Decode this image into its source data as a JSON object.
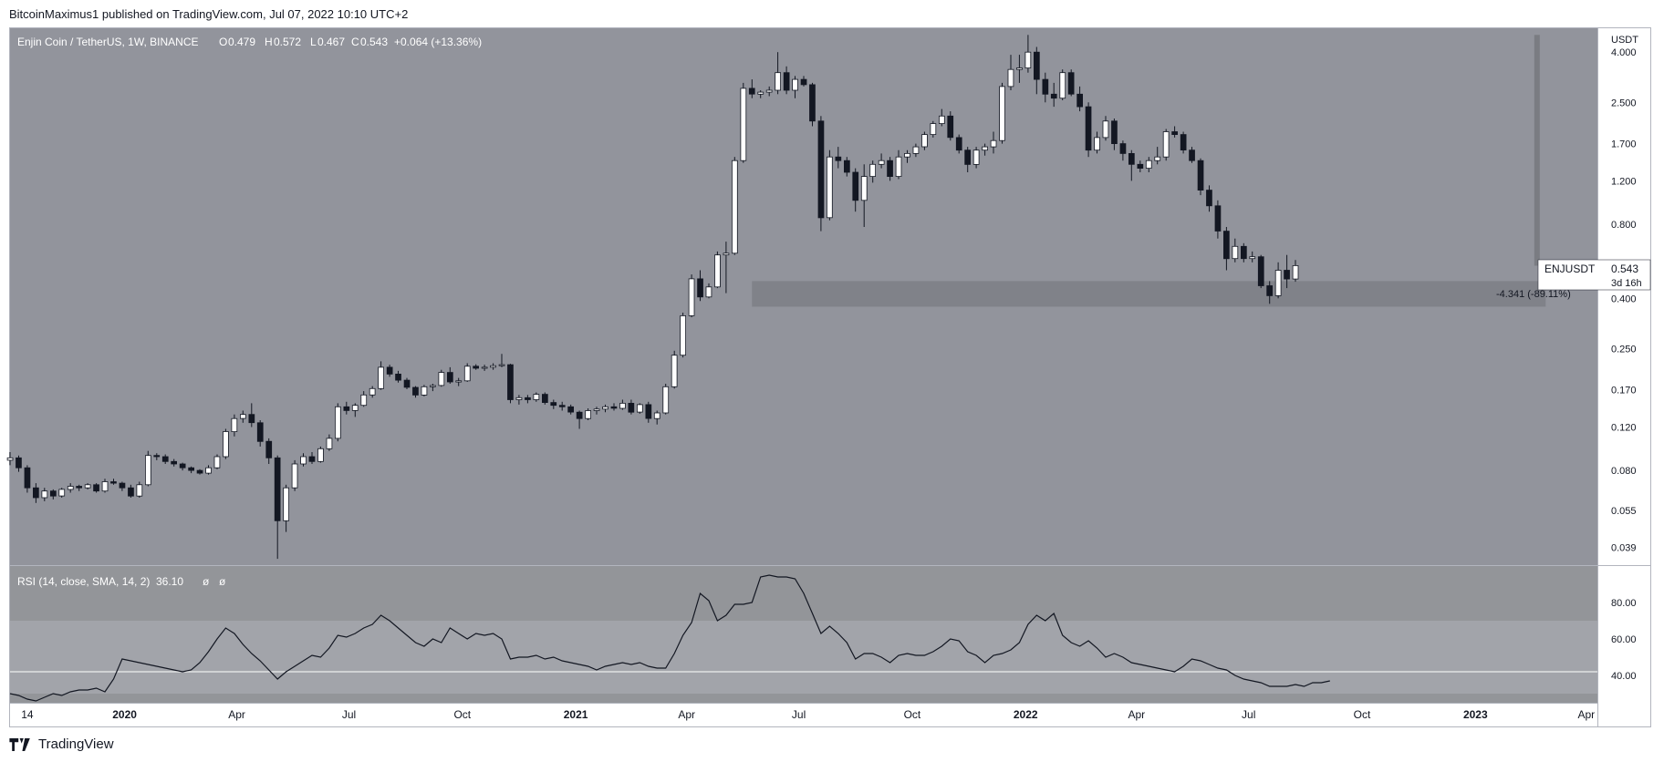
{
  "header": {
    "publish_line": "BitcoinMaximus1 published on TradingView.com, Jul 07, 2022 10:10 UTC+2"
  },
  "footer": {
    "brand": "TradingView"
  },
  "chart_data": [
    {
      "type": "candlestick",
      "title": "Enjin Coin / TetherUS, 1W, BINANCE",
      "ohlc_label": {
        "O": "0.479",
        "H": "0.572",
        "L": "0.467",
        "C": "0.543",
        "change": "+0.064 (+13.36%)"
      },
      "currency": "USDT",
      "scale": "log",
      "ylim": [
        0.033,
        5.0
      ],
      "y_ticks": [
        "4.000",
        "2.500",
        "1.700",
        "1.200",
        "0.800",
        "0.400",
        "0.250",
        "0.170",
        "0.120",
        "0.080",
        "0.055",
        "0.039"
      ],
      "x_ticks": [
        "14",
        "2020",
        "Apr",
        "Jul",
        "Oct",
        "2021",
        "Apr",
        "Jul",
        "Oct",
        "2022",
        "Apr",
        "Jul",
        "Oct",
        "2023",
        "Apr"
      ],
      "x_tick_dates": [
        "2019-10-14",
        "2020-01-01",
        "2020-04-01",
        "2020-07-01",
        "2020-10-01",
        "2021-01-01",
        "2021-04-01",
        "2021-07-01",
        "2021-10-01",
        "2022-01-01",
        "2022-04-01",
        "2022-07-01",
        "2022-10-01",
        "2023-01-01",
        "2023-04-01"
      ],
      "x_range": [
        "2019-09-30",
        "2023-04-10"
      ],
      "first_candle_date": "2019-09-30",
      "up_color": "#ffffff",
      "down_color": "#131722",
      "support_zone": [
        0.37,
        0.47
      ],
      "measure_label": "-4.341 (-89.11%)",
      "price_label": {
        "symbol": "ENJUSDT",
        "price": "0.543",
        "countdown": "3d 16h"
      },
      "candles": [
        [
          0.088,
          0.095,
          0.084,
          0.09
        ],
        [
          0.09,
          0.092,
          0.079,
          0.082
        ],
        [
          0.082,
          0.084,
          0.065,
          0.068
        ],
        [
          0.068,
          0.071,
          0.059,
          0.062
        ],
        [
          0.062,
          0.068,
          0.06,
          0.066
        ],
        [
          0.066,
          0.067,
          0.061,
          0.063
        ],
        [
          0.063,
          0.068,
          0.062,
          0.067
        ],
        [
          0.067,
          0.071,
          0.065,
          0.069
        ],
        [
          0.069,
          0.07,
          0.066,
          0.068
        ],
        [
          0.068,
          0.071,
          0.067,
          0.07
        ],
        [
          0.07,
          0.071,
          0.065,
          0.066
        ],
        [
          0.066,
          0.074,
          0.065,
          0.072
        ],
        [
          0.072,
          0.074,
          0.07,
          0.071
        ],
        [
          0.071,
          0.072,
          0.066,
          0.068
        ],
        [
          0.068,
          0.07,
          0.062,
          0.063
        ],
        [
          0.063,
          0.072,
          0.062,
          0.07
        ],
        [
          0.07,
          0.096,
          0.069,
          0.092
        ],
        [
          0.092,
          0.094,
          0.088,
          0.091
        ],
        [
          0.091,
          0.093,
          0.085,
          0.087
        ],
        [
          0.087,
          0.089,
          0.083,
          0.085
        ],
        [
          0.085,
          0.086,
          0.08,
          0.082
        ],
        [
          0.082,
          0.083,
          0.078,
          0.08
        ],
        [
          0.08,
          0.081,
          0.077,
          0.078
        ],
        [
          0.078,
          0.084,
          0.077,
          0.082
        ],
        [
          0.082,
          0.093,
          0.081,
          0.091
        ],
        [
          0.091,
          0.118,
          0.089,
          0.115
        ],
        [
          0.115,
          0.135,
          0.11,
          0.13
        ],
        [
          0.13,
          0.14,
          0.125,
          0.135
        ],
        [
          0.135,
          0.15,
          0.12,
          0.125
        ],
        [
          0.125,
          0.128,
          0.1,
          0.105
        ],
        [
          0.105,
          0.108,
          0.085,
          0.09
        ],
        [
          0.09,
          0.092,
          0.035,
          0.05
        ],
        [
          0.05,
          0.07,
          0.045,
          0.068
        ],
        [
          0.068,
          0.088,
          0.066,
          0.085
        ],
        [
          0.085,
          0.094,
          0.083,
          0.091
        ],
        [
          0.091,
          0.095,
          0.085,
          0.087
        ],
        [
          0.087,
          0.1,
          0.086,
          0.098
        ],
        [
          0.098,
          0.112,
          0.096,
          0.108
        ],
        [
          0.108,
          0.15,
          0.105,
          0.145
        ],
        [
          0.145,
          0.152,
          0.135,
          0.14
        ],
        [
          0.14,
          0.15,
          0.132,
          0.147
        ],
        [
          0.147,
          0.168,
          0.145,
          0.162
        ],
        [
          0.162,
          0.176,
          0.158,
          0.172
        ],
        [
          0.172,
          0.222,
          0.17,
          0.21
        ],
        [
          0.21,
          0.215,
          0.192,
          0.197
        ],
        [
          0.197,
          0.203,
          0.182,
          0.186
        ],
        [
          0.186,
          0.19,
          0.171,
          0.174
        ],
        [
          0.174,
          0.176,
          0.158,
          0.162
        ],
        [
          0.162,
          0.178,
          0.16,
          0.175
        ],
        [
          0.175,
          0.18,
          0.168,
          0.177
        ],
        [
          0.177,
          0.205,
          0.175,
          0.2
        ],
        [
          0.2,
          0.21,
          0.18,
          0.183
        ],
        [
          0.183,
          0.19,
          0.176,
          0.185
        ],
        [
          0.185,
          0.218,
          0.183,
          0.212
        ],
        [
          0.212,
          0.216,
          0.205,
          0.208
        ],
        [
          0.208,
          0.215,
          0.203,
          0.21
        ],
        [
          0.21,
          0.218,
          0.205,
          0.213
        ],
        [
          0.213,
          0.238,
          0.21,
          0.215
        ],
        [
          0.215,
          0.217,
          0.15,
          0.155
        ],
        [
          0.155,
          0.162,
          0.148,
          0.158
        ],
        [
          0.158,
          0.162,
          0.15,
          0.155
        ],
        [
          0.155,
          0.166,
          0.152,
          0.163
        ],
        [
          0.163,
          0.166,
          0.148,
          0.151
        ],
        [
          0.151,
          0.155,
          0.142,
          0.147
        ],
        [
          0.147,
          0.152,
          0.14,
          0.145
        ],
        [
          0.145,
          0.148,
          0.135,
          0.138
        ],
        [
          0.138,
          0.14,
          0.118,
          0.13
        ],
        [
          0.13,
          0.143,
          0.128,
          0.14
        ],
        [
          0.14,
          0.145,
          0.135,
          0.142
        ],
        [
          0.142,
          0.148,
          0.138,
          0.145
        ],
        [
          0.145,
          0.15,
          0.14,
          0.143
        ],
        [
          0.143,
          0.155,
          0.141,
          0.15
        ],
        [
          0.15,
          0.155,
          0.135,
          0.138
        ],
        [
          0.138,
          0.15,
          0.136,
          0.148
        ],
        [
          0.148,
          0.152,
          0.125,
          0.13
        ],
        [
          0.13,
          0.14,
          0.123,
          0.137
        ],
        [
          0.137,
          0.18,
          0.135,
          0.175
        ],
        [
          0.175,
          0.245,
          0.172,
          0.235
        ],
        [
          0.235,
          0.35,
          0.23,
          0.34
        ],
        [
          0.34,
          0.5,
          0.335,
          0.48
        ],
        [
          0.48,
          0.52,
          0.39,
          0.405
        ],
        [
          0.405,
          0.46,
          0.4,
          0.445
        ],
        [
          0.445,
          0.62,
          0.44,
          0.6
        ],
        [
          0.6,
          0.68,
          0.42,
          0.61
        ],
        [
          0.61,
          1.5,
          0.6,
          1.45
        ],
        [
          1.45,
          3.0,
          1.42,
          2.85
        ],
        [
          2.85,
          3.1,
          2.6,
          2.7
        ],
        [
          2.7,
          2.8,
          2.6,
          2.75
        ],
        [
          2.75,
          2.9,
          2.65,
          2.8
        ],
        [
          2.8,
          4.0,
          2.7,
          3.3
        ],
        [
          3.3,
          3.5,
          2.7,
          2.8
        ],
        [
          2.8,
          3.2,
          2.6,
          3.1
        ],
        [
          3.1,
          3.2,
          2.9,
          2.95
        ],
        [
          2.95,
          3.0,
          2.0,
          2.1
        ],
        [
          2.1,
          2.2,
          0.75,
          0.85
        ],
        [
          0.85,
          1.6,
          0.83,
          1.5
        ],
        [
          1.5,
          1.65,
          1.35,
          1.45
        ],
        [
          1.45,
          1.5,
          1.25,
          1.3
        ],
        [
          1.3,
          1.35,
          0.9,
          1.0
        ],
        [
          1.0,
          1.4,
          0.78,
          1.25
        ],
        [
          1.25,
          1.45,
          1.18,
          1.4
        ],
        [
          1.4,
          1.55,
          1.35,
          1.45
        ],
        [
          1.45,
          1.5,
          1.2,
          1.25
        ],
        [
          1.25,
          1.6,
          1.22,
          1.5
        ],
        [
          1.5,
          1.6,
          1.42,
          1.55
        ],
        [
          1.55,
          1.7,
          1.5,
          1.65
        ],
        [
          1.65,
          1.9,
          1.6,
          1.85
        ],
        [
          1.85,
          2.1,
          1.8,
          2.05
        ],
        [
          2.05,
          2.35,
          2.0,
          2.2
        ],
        [
          2.2,
          2.3,
          1.75,
          1.8
        ],
        [
          1.8,
          1.85,
          1.55,
          1.6
        ],
        [
          1.6,
          1.65,
          1.3,
          1.4
        ],
        [
          1.4,
          1.65,
          1.35,
          1.6
        ],
        [
          1.6,
          1.7,
          1.52,
          1.65
        ],
        [
          1.65,
          1.9,
          1.55,
          1.75
        ],
        [
          1.75,
          3.0,
          1.7,
          2.9
        ],
        [
          2.9,
          3.9,
          2.8,
          3.4
        ],
        [
          3.4,
          3.9,
          3.0,
          3.45
        ],
        [
          3.45,
          4.7,
          3.3,
          4.0
        ],
        [
          4.0,
          4.2,
          2.7,
          3.1
        ],
        [
          3.1,
          3.3,
          2.5,
          2.7
        ],
        [
          2.7,
          3.0,
          2.4,
          2.6
        ],
        [
          2.6,
          3.4,
          2.55,
          3.3
        ],
        [
          3.3,
          3.4,
          2.65,
          2.7
        ],
        [
          2.7,
          2.9,
          2.3,
          2.4
        ],
        [
          2.4,
          2.5,
          1.5,
          1.6
        ],
        [
          1.6,
          1.9,
          1.55,
          1.8
        ],
        [
          1.8,
          2.2,
          1.75,
          2.1
        ],
        [
          2.1,
          2.15,
          1.6,
          1.7
        ],
        [
          1.7,
          1.75,
          1.45,
          1.55
        ],
        [
          1.55,
          1.6,
          1.2,
          1.4
        ],
        [
          1.4,
          1.45,
          1.3,
          1.35
        ],
        [
          1.35,
          1.5,
          1.3,
          1.45
        ],
        [
          1.45,
          1.65,
          1.4,
          1.5
        ],
        [
          1.5,
          1.95,
          1.45,
          1.9
        ],
        [
          1.9,
          2.0,
          1.8,
          1.85
        ],
        [
          1.85,
          1.9,
          1.55,
          1.6
        ],
        [
          1.6,
          1.65,
          1.42,
          1.45
        ],
        [
          1.45,
          1.48,
          1.05,
          1.1
        ],
        [
          1.1,
          1.15,
          0.9,
          0.95
        ],
        [
          0.95,
          1.0,
          0.7,
          0.75
        ],
        [
          0.75,
          0.78,
          0.52,
          0.58
        ],
        [
          0.58,
          0.7,
          0.56,
          0.65
        ],
        [
          0.65,
          0.67,
          0.56,
          0.58
        ],
        [
          0.58,
          0.62,
          0.56,
          0.59
        ],
        [
          0.59,
          0.6,
          0.44,
          0.45
        ],
        [
          0.45,
          0.47,
          0.38,
          0.41
        ],
        [
          0.41,
          0.56,
          0.4,
          0.52
        ],
        [
          0.52,
          0.6,
          0.44,
          0.479
        ],
        [
          0.479,
          0.572,
          0.467,
          0.543
        ]
      ]
    },
    {
      "type": "line",
      "title": "RSI (14, close, SMA, 14, 2)",
      "value_label": "36.10",
      "extra_labels": [
        "ø",
        "ø"
      ],
      "y_ticks": [
        "80.00",
        "60.00",
        "40.00"
      ],
      "ylim": [
        25,
        100
      ],
      "band": [
        30,
        70
      ],
      "level_line": 42,
      "values": [
        30,
        29,
        27,
        26,
        28,
        30,
        29,
        31,
        32,
        32,
        33,
        31,
        38,
        49,
        48,
        47,
        46,
        45,
        44,
        43,
        42,
        43,
        47,
        53,
        60,
        66,
        63,
        57,
        52,
        48,
        43,
        38,
        42,
        45,
        48,
        51,
        50,
        55,
        62,
        61,
        63,
        66,
        68,
        73,
        70,
        66,
        62,
        58,
        56,
        60,
        58,
        66,
        63,
        60,
        63,
        62,
        63,
        60,
        49,
        50,
        50,
        51,
        49,
        50,
        48,
        47,
        46,
        45,
        43,
        45,
        46,
        47,
        46,
        47,
        45,
        44,
        44,
        52,
        62,
        69,
        85,
        81,
        70,
        73,
        79,
        79,
        80,
        94,
        95,
        94,
        94,
        93,
        85,
        74,
        63,
        67,
        63,
        58,
        49,
        52,
        52,
        50,
        47,
        51,
        52,
        51,
        51,
        53,
        56,
        60,
        59,
        53,
        51,
        47,
        51,
        52,
        54,
        58,
        68,
        73,
        70,
        74,
        62,
        58,
        56,
        59,
        55,
        50,
        52,
        50,
        47,
        46,
        45,
        44,
        43,
        42,
        45,
        49,
        48,
        46,
        44,
        43,
        40,
        38,
        37,
        36,
        34,
        34,
        34,
        35,
        34,
        36,
        36,
        37
      ]
    }
  ]
}
